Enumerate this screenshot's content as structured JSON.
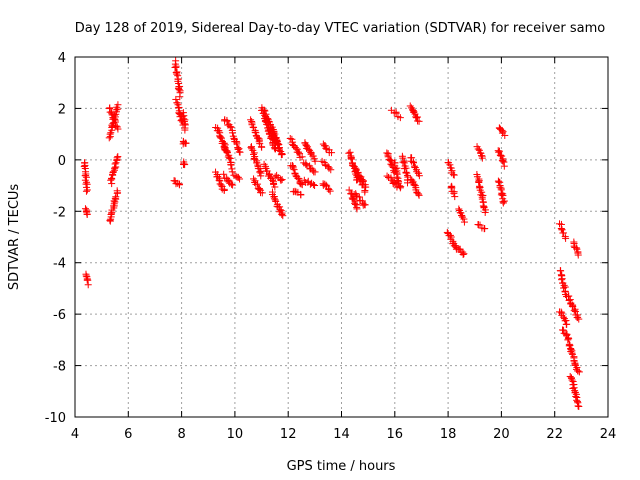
{
  "chart_data": {
    "type": "scatter",
    "title": "Day 128 of 2019, Sidereal Day-to-day VTEC variation (SDTVAR) for receiver samo",
    "xlabel": "GPS time / hours",
    "ylabel": "SDTVAR / TECUs",
    "xlim": [
      4,
      24
    ],
    "ylim": [
      -10,
      4
    ],
    "xticks": [
      "4",
      "6",
      "8",
      "10",
      "12",
      "14",
      "16",
      "18",
      "20",
      "22",
      "24"
    ],
    "yticks": [
      "-10",
      "-8",
      "-6",
      "-4",
      "-2",
      "0",
      "2",
      "4"
    ],
    "grid": true,
    "marker": "+",
    "color": "#ff0000",
    "segments": [
      {
        "x0": 4.35,
        "x1": 4.45,
        "y0": -0.1,
        "y1": -1.2
      },
      {
        "x0": 4.4,
        "x1": 4.45,
        "y0": -1.9,
        "y1": -2.15
      },
      {
        "x0": 4.4,
        "x1": 4.5,
        "y0": -4.4,
        "y1": -4.8
      },
      {
        "x0": 5.3,
        "x1": 5.6,
        "y0": 0.9,
        "y1": 2.1
      },
      {
        "x0": 5.3,
        "x1": 5.6,
        "y0": 2.0,
        "y1": 1.2
      },
      {
        "x0": 5.3,
        "x1": 5.6,
        "y0": -2.4,
        "y1": -1.2
      },
      {
        "x0": 5.35,
        "x1": 5.6,
        "y0": -0.9,
        "y1": 0.15
      },
      {
        "x0": 7.75,
        "x1": 7.95,
        "y0": 3.8,
        "y1": 2.5
      },
      {
        "x0": 7.8,
        "x1": 8.05,
        "y0": 2.3,
        "y1": 1.4
      },
      {
        "x0": 7.7,
        "x1": 7.95,
        "y0": -0.8,
        "y1": -1.0
      },
      {
        "x0": 8.05,
        "x1": 8.15,
        "y0": 1.8,
        "y1": 1.2
      },
      {
        "x0": 8.05,
        "x1": 8.15,
        "y0": 0.7,
        "y1": 0.6
      },
      {
        "x0": 8.05,
        "x1": 8.1,
        "y0": -0.1,
        "y1": -0.2
      },
      {
        "x0": 9.3,
        "x1": 9.7,
        "y0": 1.3,
        "y1": 0.3
      },
      {
        "x0": 9.3,
        "x1": 9.6,
        "y0": -0.5,
        "y1": -1.2
      },
      {
        "x0": 9.6,
        "x1": 9.9,
        "y0": 1.6,
        "y1": 1.2
      },
      {
        "x0": 9.6,
        "x1": 9.9,
        "y0": 0.6,
        "y1": -0.3
      },
      {
        "x0": 9.6,
        "x1": 9.9,
        "y0": -0.6,
        "y1": -1.0
      },
      {
        "x0": 9.9,
        "x1": 10.2,
        "y0": 1.0,
        "y1": 0.3
      },
      {
        "x0": 9.9,
        "x1": 10.2,
        "y0": -0.5,
        "y1": -0.7
      },
      {
        "x0": 10.6,
        "x1": 11.0,
        "y0": 1.5,
        "y1": 0.5
      },
      {
        "x0": 10.6,
        "x1": 11.0,
        "y0": 0.5,
        "y1": -0.6
      },
      {
        "x0": 10.7,
        "x1": 11.0,
        "y0": -0.8,
        "y1": -1.3
      },
      {
        "x0": 11.0,
        "x1": 11.5,
        "y0": 2.0,
        "y1": 0.4
      },
      {
        "x0": 11.1,
        "x1": 11.6,
        "y0": 1.9,
        "y1": 0.7
      },
      {
        "x0": 11.2,
        "x1": 11.7,
        "y0": 1.5,
        "y1": 0.5
      },
      {
        "x0": 11.3,
        "x1": 11.8,
        "y0": 1.2,
        "y1": 0.2
      },
      {
        "x0": 11.1,
        "x1": 11.5,
        "y0": -0.2,
        "y1": -1.0
      },
      {
        "x0": 11.4,
        "x1": 11.8,
        "y0": -1.3,
        "y1": -2.2
      },
      {
        "x0": 11.5,
        "x1": 11.8,
        "y0": -0.6,
        "y1": -0.8
      },
      {
        "x0": 12.1,
        "x1": 12.5,
        "y0": 0.8,
        "y1": 0.1
      },
      {
        "x0": 12.1,
        "x1": 12.5,
        "y0": -0.2,
        "y1": -1.0
      },
      {
        "x0": 12.2,
        "x1": 12.5,
        "y0": -1.2,
        "y1": -1.4
      },
      {
        "x0": 12.6,
        "x1": 13.0,
        "y0": 0.7,
        "y1": 0.0
      },
      {
        "x0": 12.6,
        "x1": 13.0,
        "y0": -0.1,
        "y1": -0.5
      },
      {
        "x0": 12.6,
        "x1": 13.0,
        "y0": -0.8,
        "y1": -1.0
      },
      {
        "x0": 13.3,
        "x1": 13.6,
        "y0": 0.6,
        "y1": 0.3
      },
      {
        "x0": 13.3,
        "x1": 13.6,
        "y0": -0.1,
        "y1": -0.4
      },
      {
        "x0": 13.3,
        "x1": 13.6,
        "y0": -0.9,
        "y1": -1.2
      },
      {
        "x0": 14.3,
        "x1": 14.6,
        "y0": 0.3,
        "y1": -0.8
      },
      {
        "x0": 14.3,
        "x1": 14.6,
        "y0": -1.2,
        "y1": -1.9
      },
      {
        "x0": 14.5,
        "x1": 14.9,
        "y0": -0.3,
        "y1": -1.2
      },
      {
        "x0": 14.5,
        "x1": 14.9,
        "y0": -1.3,
        "y1": -1.8
      },
      {
        "x0": 14.7,
        "x1": 14.9,
        "y0": -0.6,
        "y1": -1.0
      },
      {
        "x0": 15.7,
        "x1": 16.0,
        "y0": 0.3,
        "y1": -0.5
      },
      {
        "x0": 15.7,
        "x1": 16.1,
        "y0": -0.6,
        "y1": -1.0
      },
      {
        "x0": 15.9,
        "x1": 16.2,
        "y0": 1.9,
        "y1": 1.7
      },
      {
        "x0": 16.0,
        "x1": 16.2,
        "y0": -0.1,
        "y1": -1.1
      },
      {
        "x0": 16.3,
        "x1": 16.5,
        "y0": 0.1,
        "y1": -0.9
      },
      {
        "x0": 16.6,
        "x1": 16.9,
        "y0": 2.1,
        "y1": 1.5
      },
      {
        "x0": 16.6,
        "x1": 16.9,
        "y0": 0.1,
        "y1": -0.6
      },
      {
        "x0": 16.6,
        "x1": 16.9,
        "y0": -0.7,
        "y1": -1.4
      },
      {
        "x0": 18.0,
        "x1": 18.2,
        "y0": -0.1,
        "y1": -0.6
      },
      {
        "x0": 18.1,
        "x1": 18.25,
        "y0": -1.0,
        "y1": -1.4
      },
      {
        "x0": 18.0,
        "x1": 18.3,
        "y0": -2.8,
        "y1": -3.5
      },
      {
        "x0": 18.4,
        "x1": 18.6,
        "y0": -1.9,
        "y1": -2.4
      },
      {
        "x0": 18.4,
        "x1": 18.6,
        "y0": -3.4,
        "y1": -3.7
      },
      {
        "x0": 19.1,
        "x1": 19.3,
        "y0": 0.5,
        "y1": 0.1
      },
      {
        "x0": 19.1,
        "x1": 19.4,
        "y0": -0.6,
        "y1": -2.0
      },
      {
        "x0": 19.1,
        "x1": 19.4,
        "y0": -2.5,
        "y1": -2.7
      },
      {
        "x0": 19.9,
        "x1": 20.1,
        "y0": 1.3,
        "y1": 1.0
      },
      {
        "x0": 19.9,
        "x1": 20.1,
        "y0": 0.4,
        "y1": -0.2
      },
      {
        "x0": 19.9,
        "x1": 20.1,
        "y0": -0.8,
        "y1": -1.7
      },
      {
        "x0": 22.2,
        "x1": 22.4,
        "y0": -2.5,
        "y1": -3.0
      },
      {
        "x0": 22.2,
        "x1": 22.45,
        "y0": -4.3,
        "y1": -5.3
      },
      {
        "x0": 22.2,
        "x1": 22.45,
        "y0": -5.9,
        "y1": -6.4
      },
      {
        "x0": 22.3,
        "x1": 22.5,
        "y0": -6.6,
        "y1": -6.9
      },
      {
        "x0": 22.5,
        "x1": 22.9,
        "y0": -5.3,
        "y1": -6.2
      },
      {
        "x0": 22.5,
        "x1": 22.9,
        "y0": -7.0,
        "y1": -8.3
      },
      {
        "x0": 22.6,
        "x1": 22.9,
        "y0": -8.4,
        "y1": -9.6
      },
      {
        "x0": 22.7,
        "x1": 22.9,
        "y0": -3.2,
        "y1": -3.7
      }
    ]
  }
}
